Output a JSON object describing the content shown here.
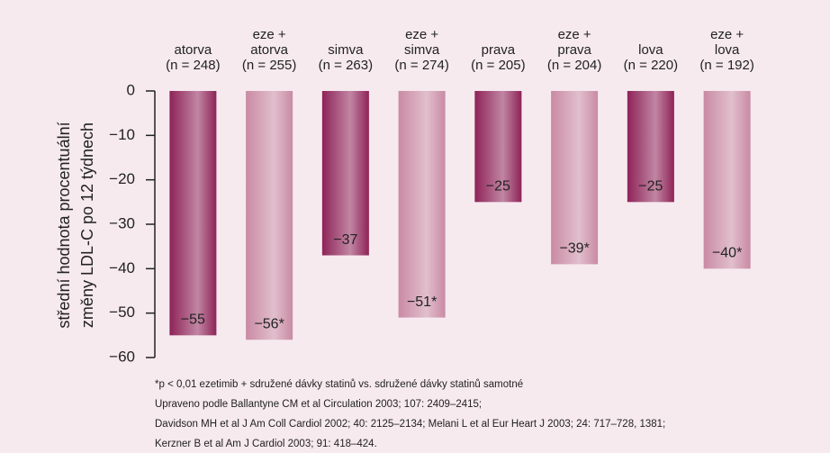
{
  "chart_data": {
    "type": "bar",
    "categories": [
      [
        "atorva",
        "(n = 248)"
      ],
      [
        "eze +",
        "atorva",
        "(n = 255)"
      ],
      [
        "simva",
        "(n = 263)"
      ],
      [
        "eze +",
        "simva",
        "(n = 274)"
      ],
      [
        "prava",
        "(n = 205)"
      ],
      [
        "eze +",
        "prava",
        "(n = 204)"
      ],
      [
        "lova",
        "(n = 220)"
      ],
      [
        "eze +",
        "lova",
        "(n = 192)"
      ]
    ],
    "values": [
      -55,
      -56,
      -37,
      -51,
      -25,
      -39,
      -25,
      -40
    ],
    "value_labels": [
      "−55",
      "−56*",
      "−37",
      "−51*",
      "−25",
      "−39*",
      "−25",
      "−40*"
    ],
    "colors": [
      "#8e2358",
      "#c98aa3",
      "#8e2358",
      "#c98aa3",
      "#8e2358",
      "#c98aa3",
      "#8e2358",
      "#c98aa3"
    ],
    "ylabel": [
      "střední hodnota procentuální",
      "změny LDL-C  po 12 týdnech"
    ],
    "ylim": [
      -60,
      0
    ],
    "yticks": [
      0,
      {
        "value": -10,
        "label": "−10"
      },
      {
        "value": -20,
        "label": "−20"
      },
      {
        "value": -30,
        "label": "−30"
      },
      {
        "value": -40,
        "label": "−40"
      },
      {
        "value": -50,
        "label": "−50"
      },
      {
        "value": -60,
        "label": "−60"
      }
    ],
    "footnotes": [
      "*p < 0,01 ezetimib + sdružené dávky statinů vs. sdružené dávky statinů samotné",
      "Upraveno podle Ballantyne CM et al Circulation 2003; 107: 2409–2415;",
      "Davidson MH et al J Am Coll Cardiol 2002; 40: 2125–2134; Melani L et al Eur Heart J 2003; 24: 717–728, 1381;",
      "Kerzner B et al Am J Cardiol 2003; 91: 418–424."
    ]
  }
}
